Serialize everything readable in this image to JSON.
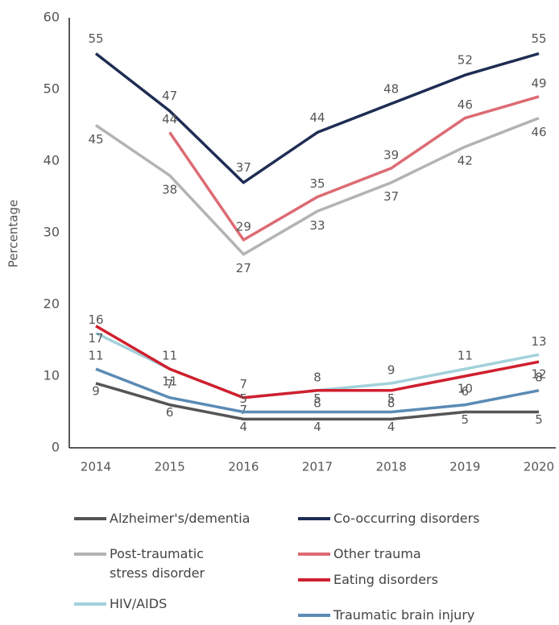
{
  "chart_data": {
    "type": "line",
    "y_label": "Percentage",
    "x": [
      2014,
      2015,
      2016,
      2017,
      2018,
      2019,
      2020
    ],
    "xlim": [
      2014,
      2020
    ],
    "ylim": [
      0,
      60
    ],
    "yticks": [
      0,
      10,
      20,
      30,
      40,
      50,
      60
    ],
    "series": [
      {
        "name": "Alzheimer's/dementia",
        "color": "#555555",
        "values": [
          9,
          6,
          4,
          4,
          4,
          5,
          5
        ]
      },
      {
        "name": "Co-occurring disorders",
        "color": "#1f2d54",
        "values": [
          55,
          47,
          37,
          44,
          48,
          52,
          55
        ]
      },
      {
        "name": "Post-traumatic stress disorder",
        "color": "#b3b3b3",
        "values": [
          45,
          38,
          27,
          33,
          37,
          42,
          46
        ]
      },
      {
        "name": "Other trauma",
        "color": "#dc6b73",
        "values": [
          null,
          44,
          29,
          35,
          39,
          46,
          49
        ]
      },
      {
        "name": "HIV/AIDS",
        "color": "#a3d1da",
        "values": [
          16,
          11,
          7,
          8,
          9,
          11,
          13
        ]
      },
      {
        "name": "Eating disorders",
        "color": "#d01f2e",
        "values": [
          17,
          11,
          7,
          8,
          8,
          10,
          12
        ]
      },
      {
        "name": "Traumatic brain injury",
        "color": "#5b8bb5",
        "values": [
          11,
          7,
          5,
          5,
          5,
          6,
          8
        ]
      }
    ]
  }
}
